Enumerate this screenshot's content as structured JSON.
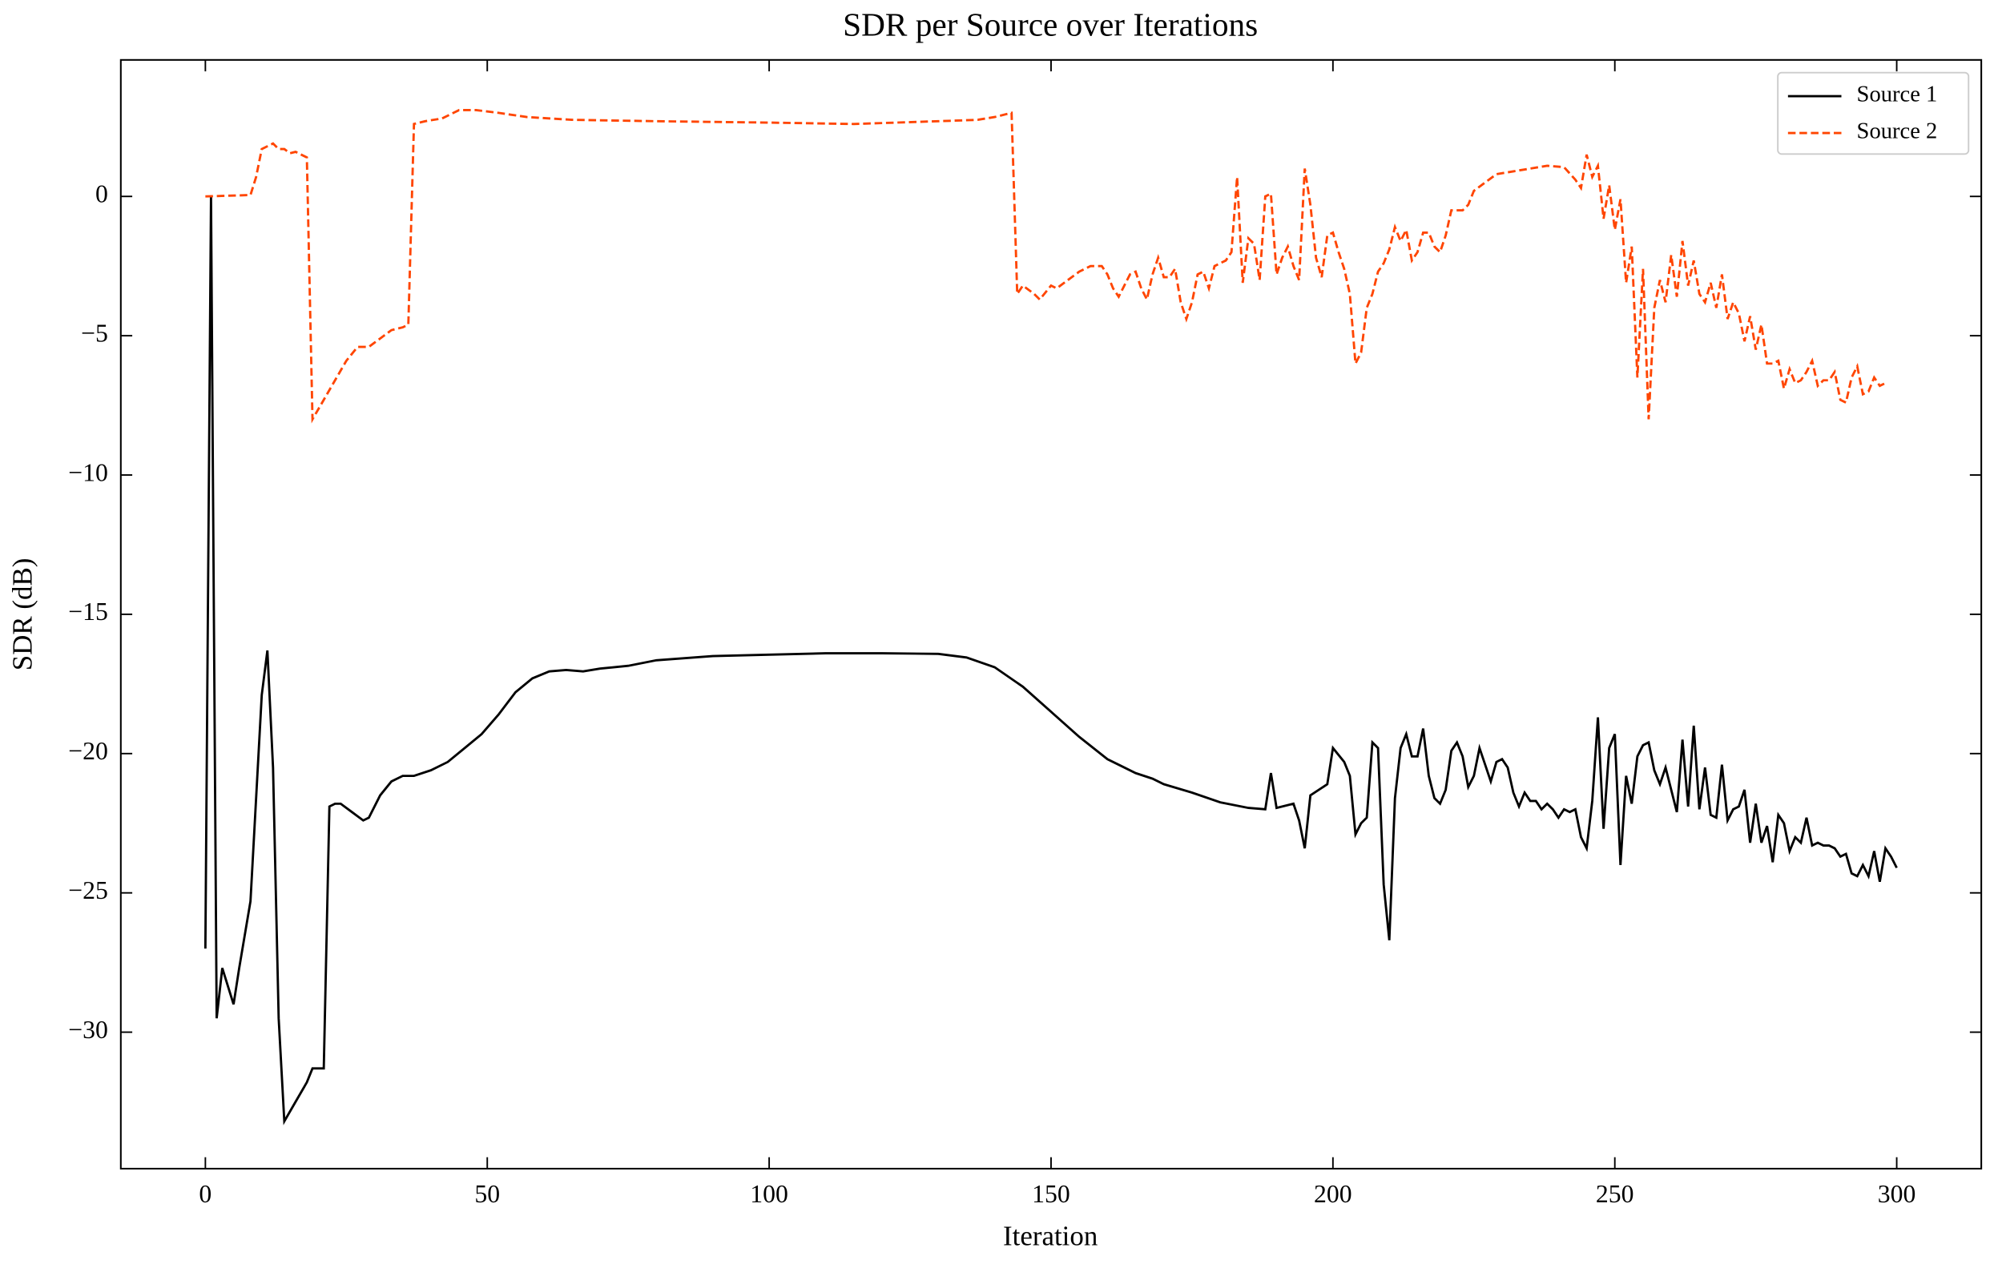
{
  "chart_data": {
    "type": "line",
    "title": "SDR per Source over Iterations",
    "xlabel": "Iteration",
    "ylabel": "SDR (dB)",
    "xlim": [
      -15,
      315
    ],
    "ylim": [
      -34.9,
      4.9
    ],
    "xticks": [
      0,
      50,
      100,
      150,
      200,
      250,
      300
    ],
    "yticks": [
      0,
      {
        "value": -5,
        "label": "−5"
      },
      {
        "value": -10,
        "label": "−10"
      },
      {
        "value": -15,
        "label": "−15"
      },
      {
        "value": -20,
        "label": "−20"
      },
      {
        "value": -25,
        "label": "−25"
      },
      {
        "value": -30,
        "label": "−30"
      }
    ],
    "legend": "upper right",
    "series": [
      {
        "name": "Source 1",
        "color": "#000000",
        "dash": "solid",
        "x": [
          0,
          1,
          2,
          3,
          5,
          6,
          8,
          10,
          11,
          12,
          13,
          14,
          16,
          18,
          19,
          21,
          22,
          23,
          24,
          26,
          28,
          29,
          31,
          33,
          35,
          37,
          40,
          43,
          46,
          49,
          52,
          55,
          58,
          61,
          64,
          67,
          70,
          75,
          80,
          90,
          100,
          110,
          120,
          130,
          135,
          140,
          145,
          150,
          155,
          160,
          165,
          168,
          170,
          175,
          180,
          185,
          188,
          189,
          190,
          193,
          194,
          195,
          196,
          199,
          200,
          202,
          203,
          204,
          205,
          206,
          207,
          208,
          209,
          210,
          211,
          212,
          213,
          214,
          215,
          216,
          217,
          218,
          219,
          220,
          221,
          222,
          223,
          224,
          225,
          226,
          227,
          228,
          229,
          230,
          231,
          232,
          233,
          234,
          235,
          236,
          237,
          238,
          239,
          240,
          241,
          242,
          243,
          244,
          245,
          246,
          247,
          248,
          249,
          250,
          251,
          252,
          253,
          254,
          255,
          256,
          257,
          258,
          259,
          260,
          261,
          262,
          263,
          264,
          265,
          266,
          267,
          268,
          269,
          270,
          271,
          272,
          273,
          274,
          275,
          276,
          277,
          278,
          279,
          280,
          281,
          282,
          283,
          284,
          285,
          286,
          287,
          288,
          289,
          290,
          291,
          292,
          293,
          294,
          295,
          296,
          297,
          298,
          299,
          300
        ],
        "values": [
          -27,
          0,
          -29.5,
          -27.7,
          -29,
          -27.7,
          -25.3,
          -17.9,
          -16.3,
          -20.5,
          -29.5,
          -33.2,
          -32.5,
          -31.8,
          -31.3,
          -31.3,
          -21.9,
          -21.8,
          -21.8,
          -22.1,
          -22.4,
          -22.3,
          -21.5,
          -21,
          -20.8,
          -20.8,
          -20.6,
          -20.3,
          -19.8,
          -19.3,
          -18.6,
          -17.8,
          -17.3,
          -17.05,
          -17,
          -17.05,
          -16.95,
          -16.85,
          -16.65,
          -16.5,
          -16.45,
          -16.4,
          -16.4,
          -16.42,
          -16.55,
          -16.9,
          -17.6,
          -18.5,
          -19.4,
          -20.2,
          -20.7,
          -20.9,
          -21.1,
          -21.4,
          -21.75,
          -21.95,
          -22,
          -20.7,
          -21.95,
          -21.8,
          -22.4,
          -23.4,
          -21.5,
          -21.1,
          -19.8,
          -20.3,
          -20.8,
          -22.9,
          -22.5,
          -22.3,
          -19.6,
          -19.8,
          -24.7,
          -26.7,
          -21.6,
          -19.8,
          -19.3,
          -20.1,
          -20.1,
          -19.1,
          -20.8,
          -21.6,
          -21.8,
          -21.3,
          -19.9,
          -19.6,
          -20.1,
          -21.2,
          -20.8,
          -19.8,
          -20.4,
          -21,
          -20.3,
          -20.2,
          -20.5,
          -21.4,
          -21.9,
          -21.4,
          -21.7,
          -21.7,
          -22,
          -21.8,
          -22,
          -22.3,
          -22,
          -22.1,
          -22,
          -23,
          -23.4,
          -21.7,
          -18.7,
          -22.7,
          -19.8,
          -19.3,
          -24,
          -20.8,
          -21.8,
          -20.1,
          -19.7,
          -19.6,
          -20.6,
          -21.1,
          -20.5,
          -21.3,
          -22.1,
          -19.5,
          -21.9,
          -19,
          -22,
          -20.5,
          -22.2,
          -22.3,
          -20.4,
          -22.4,
          -22,
          -21.9,
          -21.3,
          -23.2,
          -21.8,
          -23.2,
          -22.6,
          -23.9,
          -22.2,
          -22.5,
          -23.5,
          -23,
          -23.2,
          -22.3,
          -23.3,
          -23.2,
          -23.3,
          -23.3,
          -23.4,
          -23.7,
          -23.6,
          -24.3,
          -24.4,
          -24,
          -24.4,
          -23.5,
          -24.6,
          -23.4,
          -23.7,
          -24.1
        ]
      },
      {
        "name": "Source 2",
        "color": "#ff4500",
        "dash": "dashed",
        "x": [
          0,
          8,
          9,
          10,
          12,
          13,
          14,
          15,
          16,
          17,
          18,
          19,
          21,
          23,
          25,
          27,
          29,
          31,
          33,
          35,
          36,
          37,
          39,
          42,
          45,
          48,
          52,
          57,
          65,
          80,
          100,
          115,
          130,
          137,
          140,
          143,
          144,
          145,
          147,
          148,
          150,
          151,
          153,
          155,
          157,
          159,
          160,
          161,
          162,
          163,
          164,
          165,
          166,
          167,
          168,
          169,
          170,
          171,
          172,
          173,
          174,
          175,
          176,
          177,
          178,
          179,
          180,
          181,
          182,
          183,
          184,
          185,
          186,
          187,
          188,
          189,
          190,
          191,
          192,
          193,
          194,
          195,
          196,
          197,
          198,
          199,
          200,
          201,
          202,
          203,
          204,
          205,
          206,
          207,
          208,
          209,
          210,
          211,
          212,
          213,
          214,
          215,
          216,
          217,
          218,
          219,
          220,
          221,
          223,
          224,
          225,
          227,
          229,
          232,
          235,
          238,
          241,
          243,
          244,
          245,
          246,
          247,
          248,
          249,
          250,
          251,
          252,
          253,
          254,
          255,
          256,
          257,
          258,
          259,
          260,
          261,
          262,
          263,
          264,
          265,
          266,
          267,
          268,
          269,
          270,
          271,
          272,
          273,
          274,
          275,
          276,
          277,
          278,
          279,
          280,
          281,
          282,
          283,
          284,
          285,
          286,
          287,
          288,
          289,
          290,
          291,
          292,
          293,
          294,
          295,
          296,
          297,
          298
        ],
        "values": [
          0,
          0.05,
          0.7,
          1.7,
          1.9,
          1.7,
          1.7,
          1.55,
          1.6,
          1.5,
          1.4,
          -8,
          -7.3,
          -6.6,
          -5.9,
          -5.4,
          -5.4,
          -5.1,
          -4.8,
          -4.7,
          -4.6,
          2.6,
          2.7,
          2.8,
          3.1,
          3.1,
          3,
          2.85,
          2.75,
          2.7,
          2.65,
          2.6,
          2.7,
          2.75,
          2.85,
          3,
          -3.5,
          -3.2,
          -3.5,
          -3.7,
          -3.2,
          -3.3,
          -3,
          -2.7,
          -2.5,
          -2.5,
          -2.8,
          -3.3,
          -3.6,
          -3.2,
          -2.8,
          -2.7,
          -3.3,
          -3.7,
          -2.8,
          -2.2,
          -2.9,
          -2.9,
          -2.6,
          -3.8,
          -4.4,
          -3.8,
          -2.8,
          -2.7,
          -3.3,
          -2.5,
          -2.4,
          -2.3,
          -2,
          0.7,
          -3.1,
          -1.5,
          -1.7,
          -3,
          0,
          0.1,
          -2.8,
          -2.2,
          -1.8,
          -2.5,
          -3,
          1,
          -0.3,
          -2.2,
          -2.9,
          -1.4,
          -1.3,
          -2,
          -2.6,
          -3.5,
          -6,
          -5.6,
          -4,
          -3.5,
          -2.7,
          -2.4,
          -1.9,
          -1.1,
          -1.6,
          -1.2,
          -2.3,
          -2,
          -1.3,
          -1.3,
          -1.8,
          -2,
          -1.4,
          -0.5,
          -0.5,
          -0.3,
          0.2,
          0.5,
          0.8,
          0.9,
          1,
          1.1,
          1.05,
          0.6,
          0.3,
          1.5,
          0.7,
          1.1,
          -0.8,
          0.4,
          -1.2,
          -0.1,
          -3.1,
          -1.8,
          -6.5,
          -2.6,
          -8,
          -4,
          -3,
          -3.8,
          -2.1,
          -3.6,
          -1.6,
          -3.2,
          -2.3,
          -3.5,
          -3.8,
          -3.1,
          -4,
          -2.8,
          -4.4,
          -3.8,
          -4.2,
          -5.2,
          -4.3,
          -5.5,
          -4.6,
          -6,
          -6,
          -5.9,
          -6.9,
          -6.2,
          -6.7,
          -6.6,
          -6.3,
          -5.9,
          -6.8,
          -6.6,
          -6.6,
          -6.3,
          -7.3,
          -7.4,
          -6.5,
          -6.1,
          -7.1,
          -7,
          -6.5,
          -6.8,
          -6.7
        ]
      }
    ]
  }
}
